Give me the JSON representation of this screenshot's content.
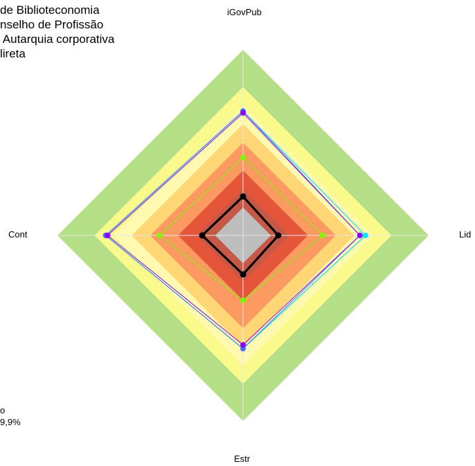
{
  "header": {
    "title_lines": [
      "de Biblioteconomia",
      "nselho de Profissão",
      " Autarquia corporativa",
      "lireta"
    ]
  },
  "footer": {
    "lines": [
      "o",
      "9,9%"
    ]
  },
  "chart_data": {
    "type": "radar",
    "axes": [
      "iGovPub",
      "Lid",
      "Estr",
      "Cont"
    ],
    "scale": [
      0,
      1
    ],
    "grid": false,
    "bands": [
      {
        "from": 0.8,
        "to": 1.0,
        "color": "#b5df87"
      },
      {
        "from": 0.7,
        "to": 0.8,
        "color": "#fafa8c"
      },
      {
        "from": 0.6,
        "to": 0.7,
        "color": "#fffab0"
      },
      {
        "from": 0.5,
        "to": 0.6,
        "color": "#ffd675"
      },
      {
        "from": 0.35,
        "to": 0.5,
        "color": "#fc9a62"
      },
      {
        "from": 0.25,
        "to": 0.35,
        "color": "#e4553a"
      },
      {
        "from": 0.15,
        "to": 0.25,
        "color": "#c55846"
      },
      {
        "from": 0.0,
        "to": 0.15,
        "color": "#bebebe"
      }
    ],
    "series": [
      {
        "color": "#00e5ff",
        "values": [
          0.67,
          0.66,
          0.61,
          0.74
        ],
        "line_width": 1.2
      },
      {
        "color": "#4a6cff",
        "values": [
          0.67,
          0.63,
          0.61,
          0.74
        ],
        "line_width": 1.0
      },
      {
        "color": "#8b00ff",
        "values": [
          0.66,
          0.63,
          0.59,
          0.73
        ],
        "line_width": 1.0
      },
      {
        "color": "#7cfc00",
        "values": [
          0.42,
          0.43,
          0.35,
          0.45
        ],
        "line_width": 1.0
      },
      {
        "color": "#000000",
        "values": [
          0.21,
          0.19,
          0.21,
          0.22
        ],
        "line_width": 3.2
      }
    ]
  }
}
